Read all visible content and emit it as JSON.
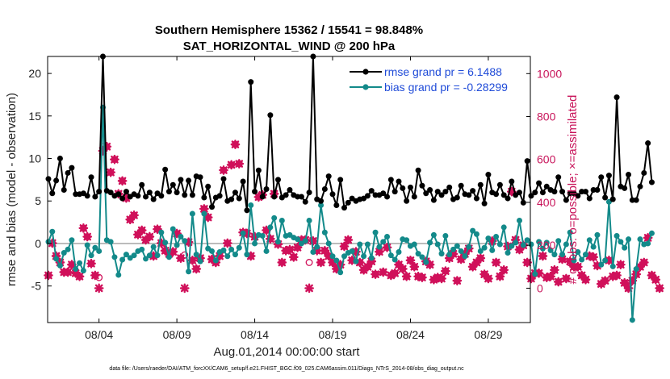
{
  "chart_data": {
    "type": "line",
    "title": "Southern Hemisphere 15362 / 15541 = 98.848%",
    "subtitle": "SAT_HORIZONTAL_WIND @ 200 hPa",
    "xlabel": "Aug.01,2014 00:00:00 start",
    "ylabel": "rmse and bias (model - observation)",
    "y2label": "# of obs: o=possible; ×=assimilated",
    "footnote": "data file: /Users/raeder/DAI/ATM_forcXX/CAM6_setup/f.e21.FHIST_BGC.f09_025.CAM6assim.011/Diags_NTrS_2014-08/obs_diag_output.nc",
    "x_range": [
      0.7,
      31.7
    ],
    "x_ticks": [
      {
        "day": 4,
        "label": "08/04"
      },
      {
        "day": 9,
        "label": "08/09"
      },
      {
        "day": 14,
        "label": "08/14"
      },
      {
        "day": 19,
        "label": "08/19"
      },
      {
        "day": 24,
        "label": "08/24"
      },
      {
        "day": 29,
        "label": "08/29"
      }
    ],
    "ylim": [
      -9.3,
      22
    ],
    "y_ticks": [
      -5,
      0,
      5,
      10,
      15,
      20
    ],
    "y2lim": [
      -160,
      1080
    ],
    "y2_ticks": [
      0,
      200,
      400,
      600,
      800,
      1000
    ],
    "colors": {
      "rmse": "#000000",
      "bias": "#138a8a",
      "obs": "#d0105a",
      "zero": "#bbbbbb"
    },
    "legend": [
      {
        "name": "rmse",
        "label": "rmse grand pr = 6.1488",
        "color": "#000000"
      },
      {
        "name": "bias",
        "label": "bias grand pr = -0.28299",
        "color": "#138a8a"
      }
    ],
    "series": [
      {
        "name": "rmse",
        "axis": "left",
        "start_day": 0.75,
        "step_days": 0.25,
        "values": [
          7.6,
          5.9,
          7.4,
          10,
          6.3,
          8.3,
          8.9,
          5.8,
          5.8,
          5.9,
          5.6,
          7.8,
          5.5,
          6.1,
          22.0,
          6.2,
          6.0,
          5.6,
          5.8,
          5.3,
          6.1,
          5.5,
          5.8,
          5.6,
          6.9,
          5.5,
          6.0,
          5.2,
          5.9,
          5.6,
          8.7,
          6.1,
          6.9,
          6.0,
          7.5,
          5.7,
          7.4,
          5.7,
          7.9,
          7.8,
          5.4,
          6.7,
          4.3,
          5.4,
          5.6,
          7.6,
          5.0,
          5.2,
          6.0,
          5.3,
          7.3,
          3.9,
          19.0,
          6.1,
          8.6,
          5.5,
          6.4,
          15.1,
          5.5,
          7.5,
          5.4,
          5.7,
          6.3,
          5.7,
          5.5,
          5.5,
          4.9,
          6.0,
          22.0,
          5.2,
          5.0,
          6.4,
          7.9,
          5.8,
          4.5,
          7.5,
          4.2,
          4.8,
          5.3,
          5.0,
          5.2,
          5.3,
          5.6,
          6.2,
          5.7,
          5.7,
          5.9,
          5.5,
          7.5,
          6.1,
          7.3,
          6.5,
          5.0,
          6.6,
          5.5,
          8.6,
          6.8,
          5.9,
          6.3,
          5.1,
          6.1,
          5.7,
          6.1,
          6.6,
          5.2,
          5.4,
          6.8,
          5.8,
          5.7,
          6.2,
          5.3,
          6.9,
          4.7,
          8.1,
          6.0,
          5.8,
          6.9,
          5.7,
          5.3,
          7.3,
          5.7,
          6.0,
          4.8,
          9.7,
          5.6,
          6.0,
          7.1,
          6.0,
          6.7,
          6.3,
          6.1,
          7.8,
          6.1,
          5.1,
          5.9,
          5.9,
          5.6,
          6.1,
          6.1,
          5.3,
          6.3,
          6.3,
          7.8,
          5.4,
          8.0,
          5.2,
          17.2,
          6.7,
          6.5,
          8.1,
          5.1,
          5.1,
          6.7,
          8.3,
          11.8,
          7.2
        ]
      },
      {
        "name": "bias",
        "axis": "left",
        "start_day": 0.75,
        "step_days": 0.25,
        "values": [
          0.2,
          1.4,
          -1.8,
          -2.6,
          -1.1,
          -0.7,
          0.4,
          -3.0,
          -2.3,
          -3.2,
          -0.2,
          -1.4,
          -0.5,
          -0.9,
          16.0,
          0.4,
          0.2,
          -1.6,
          -3.7,
          -1.9,
          -1.3,
          -1.7,
          -1.4,
          -0.9,
          -0.7,
          -1.8,
          -1.4,
          -0.4,
          -1.4,
          1.3,
          0.1,
          -1.6,
          1.7,
          -0.2,
          0.8,
          0.3,
          -3.3,
          3.5,
          -1.3,
          -2.1,
          3.5,
          -0.6,
          -0.9,
          -2.0,
          -1.0,
          -0.8,
          -1.5,
          -0.7,
          -1.3,
          -0.5,
          1.2,
          -1.3,
          4.5,
          0.0,
          1.0,
          0.9,
          -0.9,
          1.9,
          3.0,
          0.2,
          2.7,
          0.9,
          1.0,
          0.7,
          0.5,
          0.0,
          0.3,
          2.7,
          -1.0,
          -0.4,
          4.5,
          1.3,
          0.0,
          -1.5,
          -2.0,
          -3.4,
          -1.5,
          -1.1,
          -0.9,
          -2.1,
          -0.1,
          -1.5,
          -0.1,
          -1.7,
          1.3,
          -0.4,
          0.2,
          0.8,
          -1.4,
          -1.9,
          -1.0,
          0.5,
          0.4,
          -0.3,
          -0.1,
          -1.2,
          -1.6,
          -2.2,
          0.1,
          1.0,
          -0.1,
          -1.2,
          0.9,
          -1.3,
          -0.7,
          -0.3,
          -0.9,
          -1.5,
          -0.4,
          1.5,
          1.1,
          -0.9,
          -0.5,
          0.6,
          -0.8,
          0.8,
          -0.1,
          1.9,
          -1.1,
          -0.3,
          0.1,
          2.7,
          -0.2,
          0.4,
          -0.1,
          -3.6,
          0.2,
          -0.6,
          0.1,
          -0.8,
          -1.3,
          0.3,
          -1.3,
          -0.1,
          1.3,
          -2.0,
          -1.0,
          -1.9,
          -1.3,
          0.4,
          -0.4,
          1.0,
          -2.5,
          -2.0,
          4.9,
          -2.7,
          0.9,
          0.2,
          -0.5,
          0.5,
          -9.0,
          -3.0,
          0.5,
          -0.1,
          0.0,
          1.2
        ]
      },
      {
        "name": "obs_possible",
        "axis": "right",
        "start_day": 0.75,
        "step_days": 0.25,
        "values": [
          60,
          210,
          150,
          120,
          75,
          75,
          110,
          70,
          55,
          280,
          240,
          115,
          60,
          50,
          640,
          660,
          540,
          600,
          440,
          500,
          420,
          320,
          340,
          250,
          270,
          225,
          240,
          150,
          275,
          210,
          175,
          160,
          170,
          255,
          140,
          155,
          215,
          130,
          90,
          140,
          370,
          330,
          135,
          120,
          150,
          550,
          210,
          575,
          670,
          580,
          260,
          255,
          150,
          240,
          425,
          435,
          270,
          230,
          440,
          205,
          120,
          175,
          180,
          145,
          190,
          225,
          225,
          120,
          220,
          175,
          120,
          175,
          150,
          120,
          90,
          110,
          195,
          225,
          130,
          170,
          120,
          85,
          100,
          125,
          65,
          170,
          75,
          190,
          60,
          70,
          110,
          90,
          55,
          130,
          100,
          55,
          50,
          125,
          110,
          40,
          50,
          45,
          80,
          140,
          160,
          35,
          135,
          160,
          185,
          100,
          120,
          140,
          65,
          45,
          220,
          120,
          55,
          85,
          195,
          450,
          225,
          180,
          200,
          120,
          45,
          70,
          70,
          150,
          50,
          55,
          85,
          30,
          135,
          45,
          125,
          100,
          100,
          60,
          40,
          150,
          145,
          105,
          20,
          35,
          130,
          55,
          60,
          110,
          25,
          0,
          35,
          65,
          100,
          120,
          235,
          60,
          40,
          0
        ]
      },
      {
        "name": "obs_assimilated",
        "axis": "right",
        "start_day": 0.75,
        "step_days": 0.25,
        "values": [
          60,
          210,
          150,
          120,
          75,
          75,
          110,
          70,
          55,
          280,
          240,
          115,
          60,
          0,
          640,
          660,
          540,
          600,
          440,
          500,
          420,
          320,
          340,
          250,
          270,
          225,
          240,
          150,
          275,
          210,
          175,
          160,
          170,
          255,
          140,
          0,
          215,
          130,
          90,
          140,
          370,
          330,
          135,
          120,
          150,
          550,
          210,
          575,
          670,
          580,
          260,
          255,
          150,
          240,
          425,
          435,
          270,
          230,
          440,
          205,
          120,
          175,
          180,
          145,
          190,
          225,
          225,
          0,
          220,
          175,
          120,
          175,
          150,
          120,
          90,
          110,
          195,
          225,
          130,
          170,
          120,
          85,
          100,
          125,
          65,
          170,
          75,
          190,
          60,
          70,
          110,
          90,
          55,
          130,
          100,
          55,
          50,
          125,
          110,
          40,
          50,
          45,
          80,
          140,
          160,
          35,
          135,
          160,
          185,
          100,
          120,
          140,
          65,
          45,
          220,
          120,
          55,
          85,
          195,
          450,
          225,
          180,
          200,
          120,
          45,
          70,
          70,
          150,
          50,
          55,
          85,
          30,
          135,
          45,
          125,
          100,
          100,
          60,
          40,
          150,
          145,
          105,
          20,
          35,
          130,
          55,
          60,
          110,
          25,
          0,
          35,
          65,
          100,
          120,
          235,
          60,
          40,
          0
        ]
      }
    ]
  }
}
